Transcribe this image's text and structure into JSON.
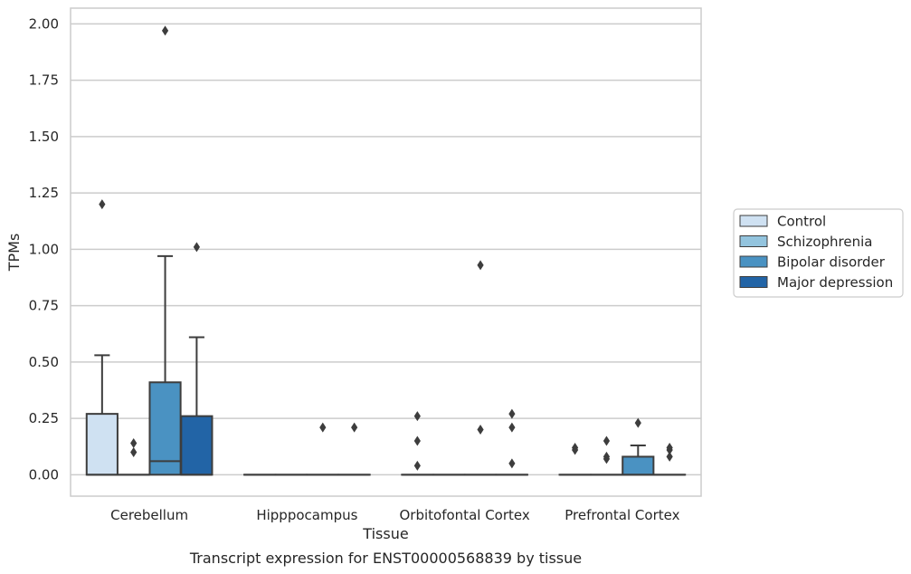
{
  "chart_data": {
    "type": "box",
    "title": "",
    "caption": "Transcript expression for ENST00000568839 by tissue",
    "xlabel": "Tissue",
    "ylabel": "TPMs",
    "ylim": [
      -0.095,
      2.07
    ],
    "yticks": [
      "0.00",
      "0.25",
      "0.50",
      "0.75",
      "1.00",
      "1.25",
      "1.50",
      "1.75",
      "2.00"
    ],
    "grid": "horizontal",
    "legend_position": "right",
    "categories": [
      "Cerebellum",
      "Hipppocampus",
      "Orbitofontal Cortex",
      "Prefrontal Cortex"
    ],
    "series": [
      {
        "name": "Control",
        "color": "#cfe1f2",
        "boxes": [
          {
            "category": "Cerebellum",
            "q1": 0.0,
            "median": 0.0,
            "q3": 0.27,
            "whisker_low": 0.0,
            "whisker_high": 0.53,
            "outliers": [
              1.2
            ]
          },
          {
            "category": "Hipppocampus",
            "q1": 0.0,
            "median": 0.0,
            "q3": 0.0,
            "whisker_low": 0.0,
            "whisker_high": 0.0,
            "outliers": []
          },
          {
            "category": "Orbitofontal Cortex",
            "q1": 0.0,
            "median": 0.0,
            "q3": 0.0,
            "whisker_low": 0.0,
            "whisker_high": 0.0,
            "outliers": [
              0.04,
              0.15,
              0.26
            ]
          },
          {
            "category": "Prefrontal Cortex",
            "q1": 0.0,
            "median": 0.0,
            "q3": 0.0,
            "whisker_low": 0.0,
            "whisker_high": 0.0,
            "outliers": [
              0.11,
              0.12
            ]
          }
        ]
      },
      {
        "name": "Schizophrenia",
        "color": "#93c4de",
        "boxes": [
          {
            "category": "Cerebellum",
            "q1": 0.0,
            "median": 0.0,
            "q3": 0.0,
            "whisker_low": 0.0,
            "whisker_high": 0.0,
            "outliers": [
              0.1,
              0.14
            ]
          },
          {
            "category": "Hipppocampus",
            "q1": 0.0,
            "median": 0.0,
            "q3": 0.0,
            "whisker_low": 0.0,
            "whisker_high": 0.0,
            "outliers": []
          },
          {
            "category": "Orbitofontal Cortex",
            "q1": 0.0,
            "median": 0.0,
            "q3": 0.0,
            "whisker_low": 0.0,
            "whisker_high": 0.0,
            "outliers": []
          },
          {
            "category": "Prefrontal Cortex",
            "q1": 0.0,
            "median": 0.0,
            "q3": 0.0,
            "whisker_low": 0.0,
            "whisker_high": 0.0,
            "outliers": [
              0.07,
              0.08,
              0.15
            ]
          }
        ]
      },
      {
        "name": "Bipolar disorder",
        "color": "#4a92c2",
        "boxes": [
          {
            "category": "Cerebellum",
            "q1": 0.0,
            "median": 0.06,
            "q3": 0.41,
            "whisker_low": 0.0,
            "whisker_high": 0.97,
            "outliers": [
              1.97
            ]
          },
          {
            "category": "Hipppocampus",
            "q1": 0.0,
            "median": 0.0,
            "q3": 0.0,
            "whisker_low": 0.0,
            "whisker_high": 0.0,
            "outliers": [
              0.21
            ]
          },
          {
            "category": "Orbitofontal Cortex",
            "q1": 0.0,
            "median": 0.0,
            "q3": 0.0,
            "whisker_low": 0.0,
            "whisker_high": 0.0,
            "outliers": [
              0.93,
              0.2
            ]
          },
          {
            "category": "Prefrontal Cortex",
            "q1": 0.0,
            "median": 0.0,
            "q3": 0.08,
            "whisker_low": 0.0,
            "whisker_high": 0.13,
            "outliers": [
              0.23
            ]
          }
        ]
      },
      {
        "name": "Major depression",
        "color": "#2264a6",
        "boxes": [
          {
            "category": "Cerebellum",
            "q1": 0.0,
            "median": 0.0,
            "q3": 0.26,
            "whisker_low": 0.0,
            "whisker_high": 0.61,
            "outliers": [
              1.01
            ]
          },
          {
            "category": "Hipppocampus",
            "q1": 0.0,
            "median": 0.0,
            "q3": 0.0,
            "whisker_low": 0.0,
            "whisker_high": 0.0,
            "outliers": [
              0.21
            ]
          },
          {
            "category": "Orbitofontal Cortex",
            "q1": 0.0,
            "median": 0.0,
            "q3": 0.0,
            "whisker_low": 0.0,
            "whisker_high": 0.0,
            "outliers": [
              0.05,
              0.21,
              0.27
            ]
          },
          {
            "category": "Prefrontal Cortex",
            "q1": 0.0,
            "median": 0.0,
            "q3": 0.0,
            "whisker_low": 0.0,
            "whisker_high": 0.0,
            "outliers": [
              0.08,
              0.11,
              0.12
            ]
          }
        ]
      }
    ]
  }
}
